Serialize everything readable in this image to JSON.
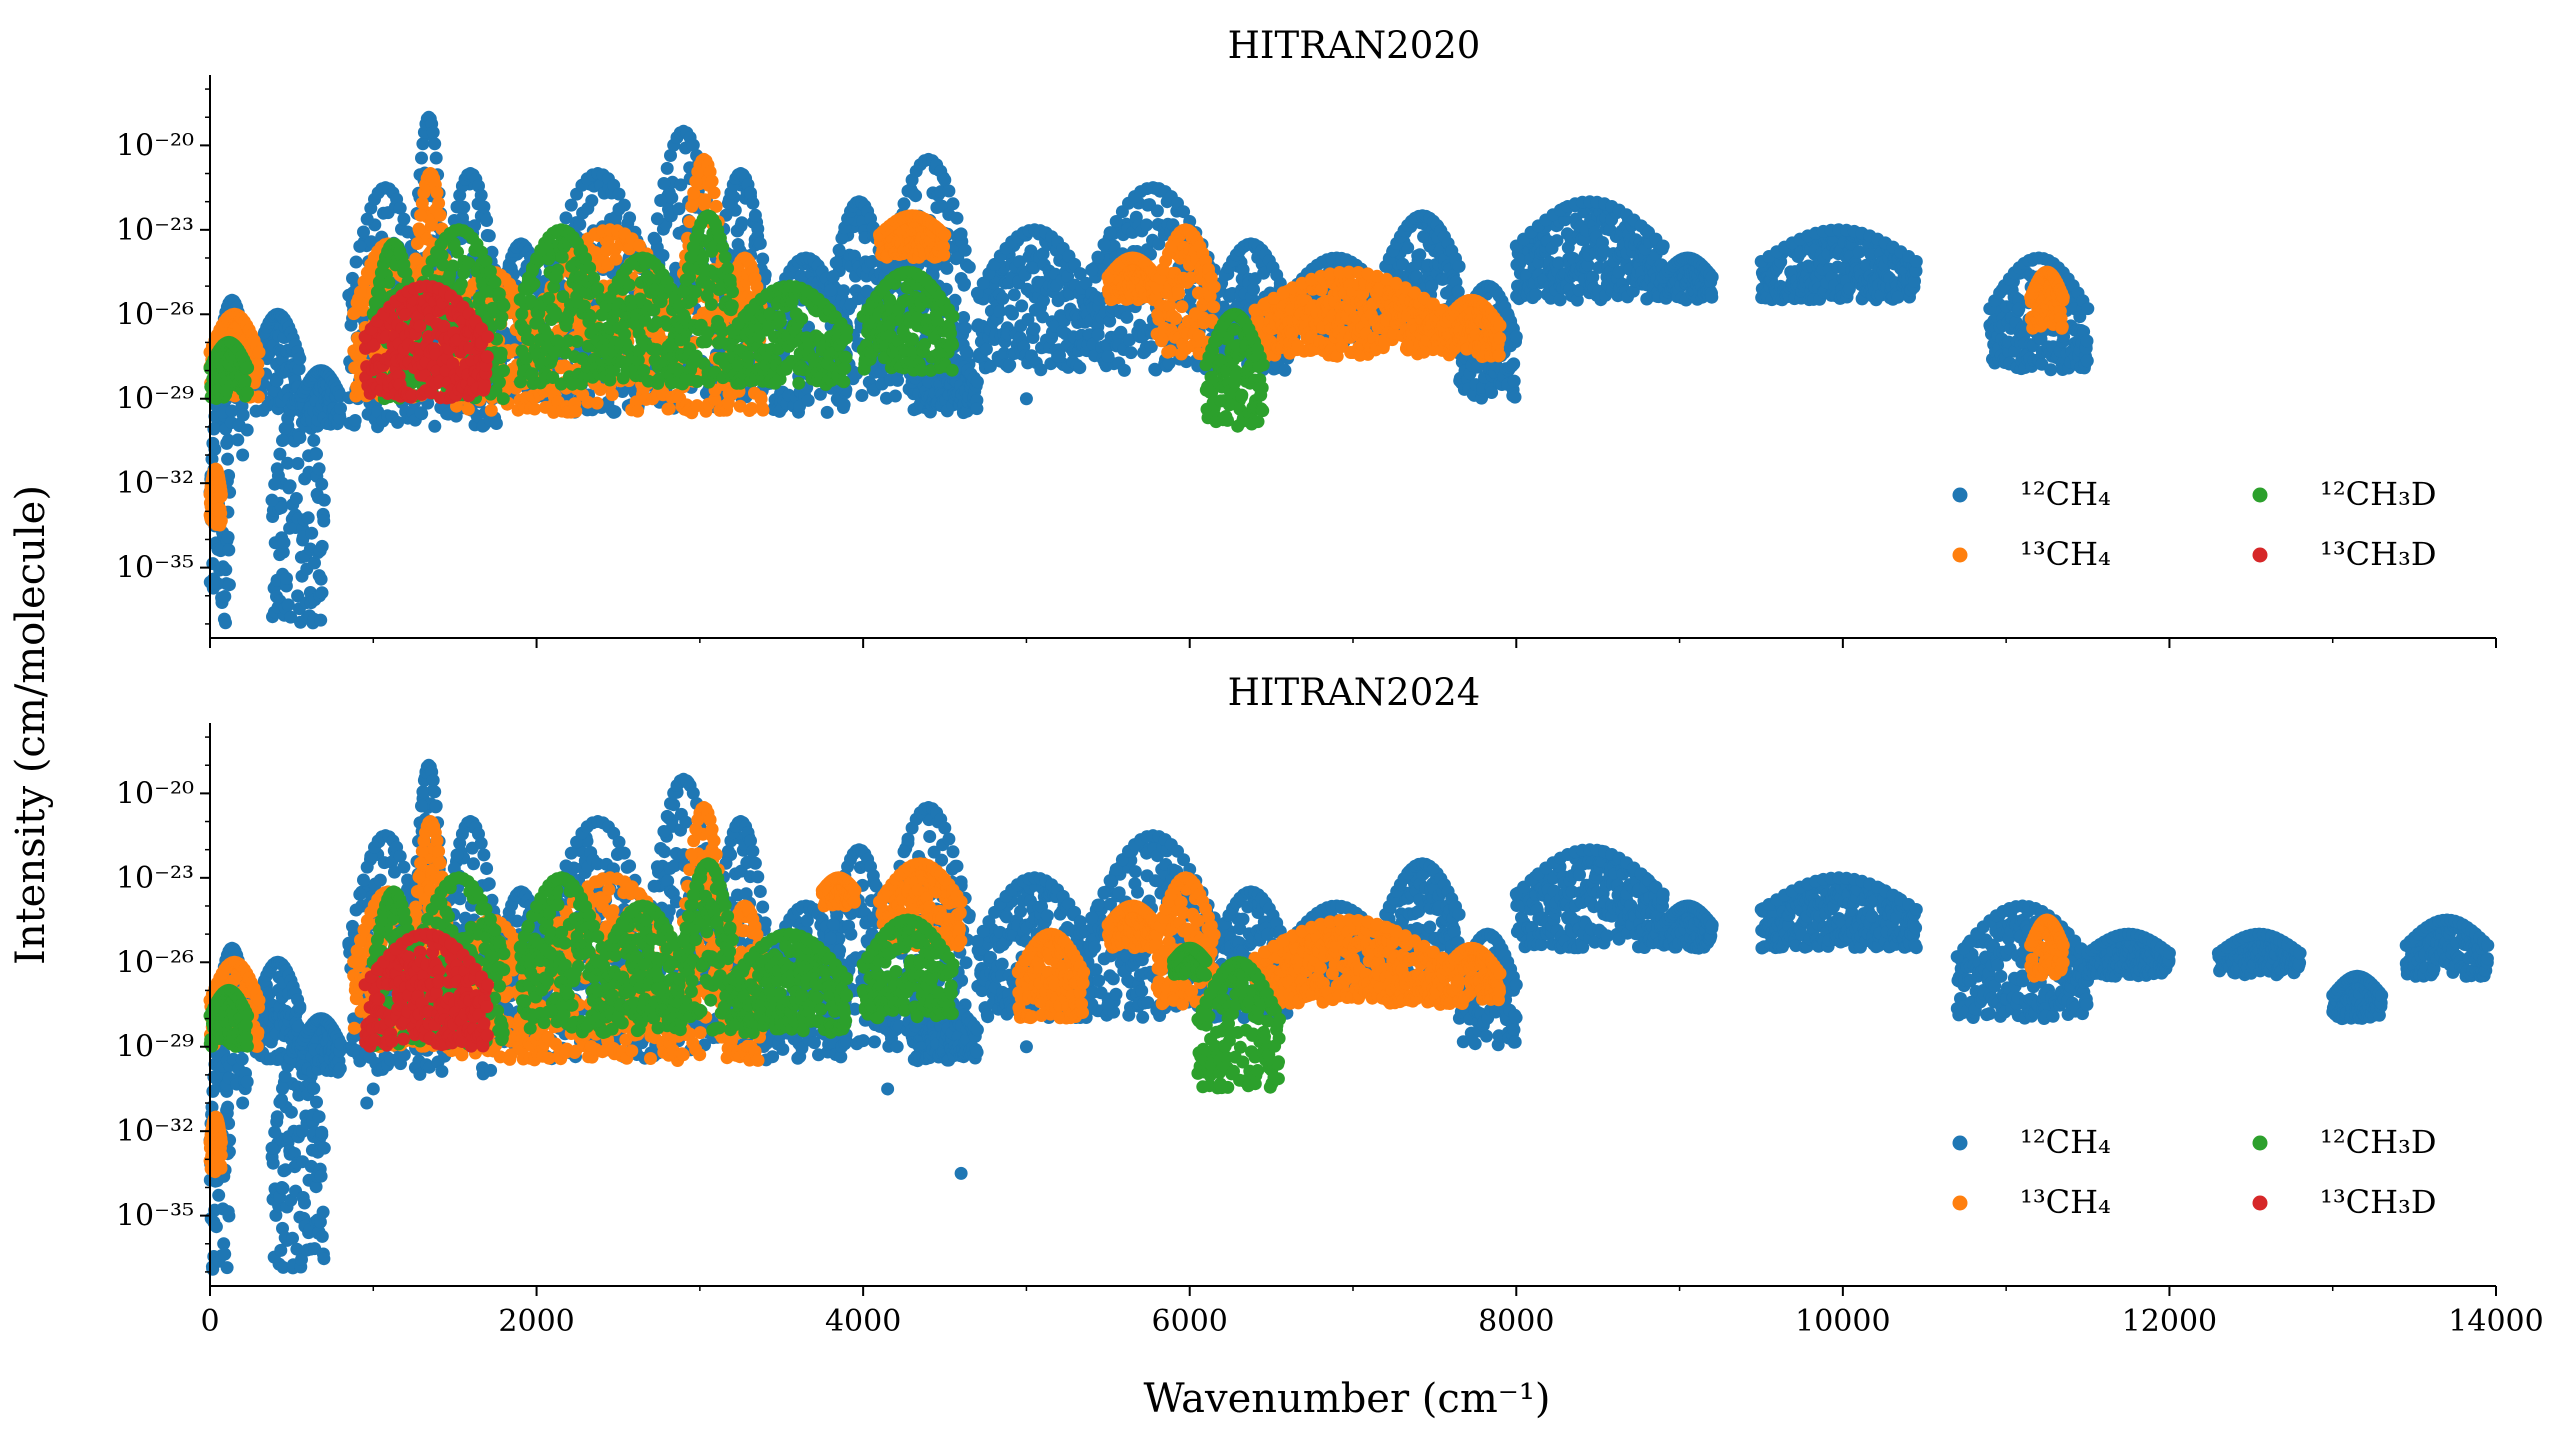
{
  "figure": {
    "ylabel": "Intensity (cm/molecule)",
    "xlabel": "Wavenumber (cm⁻¹)"
  },
  "chart_data": [
    {
      "type": "scatter",
      "title": "HITRAN2020",
      "xlabel": "",
      "ylabel": "Intensity (cm/molecule)",
      "xlim": [
        0,
        14000
      ],
      "ylim_log10": [
        -37.5,
        -17.5
      ],
      "yscale": "log",
      "x_ticks": [
        "0",
        "2000",
        "4000",
        "6000",
        "8000",
        "10000",
        "12000",
        "14000"
      ],
      "x_tick_labels_shown": false,
      "y_ticks": [
        {
          "exp": -20,
          "label": "10⁻²⁰"
        },
        {
          "exp": -23,
          "label": "10⁻²³"
        },
        {
          "exp": -26,
          "label": "10⁻²⁶"
        },
        {
          "exp": -29,
          "label": "10⁻²⁹"
        },
        {
          "exp": -32,
          "label": "10⁻³²"
        },
        {
          "exp": -35,
          "label": "10⁻³⁵"
        }
      ],
      "legend_position": "lower-right",
      "series": [
        {
          "name": "¹²CH₄",
          "color": "#1f77b4",
          "bands": [
            {
              "x0": 0,
              "x1": 120,
              "lo": -37,
              "hi": -28.5
            },
            {
              "x0": 40,
              "x1": 230,
              "lo": -30.5,
              "hi": -25.5
            },
            {
              "x0": 280,
              "x1": 550,
              "lo": -29.5,
              "hi": -26
            },
            {
              "x0": 380,
              "x1": 700,
              "lo": -37,
              "hi": -29
            },
            {
              "x0": 560,
              "x1": 800,
              "lo": -30,
              "hi": -28
            },
            {
              "x0": 850,
              "x1": 1300,
              "lo": -30,
              "hi": -21.5
            },
            {
              "x0": 1250,
              "x1": 1430,
              "lo": -30,
              "hi": -19
            },
            {
              "x0": 1430,
              "x1": 1760,
              "lo": -30,
              "hi": -21
            },
            {
              "x0": 1760,
              "x1": 2050,
              "lo": -29,
              "hi": -23.5
            },
            {
              "x0": 2050,
              "x1": 2700,
              "lo": -29.5,
              "hi": -21
            },
            {
              "x0": 2700,
              "x1": 3100,
              "lo": -29.5,
              "hi": -19.5
            },
            {
              "x0": 3100,
              "x1": 3400,
              "lo": -29,
              "hi": -21
            },
            {
              "x0": 3400,
              "x1": 3900,
              "lo": -29.5,
              "hi": -24
            },
            {
              "x0": 3800,
              "x1": 4150,
              "lo": -29,
              "hi": -22
            },
            {
              "x0": 4150,
              "x1": 4650,
              "lo": -29,
              "hi": -20.5
            },
            {
              "x0": 4300,
              "x1": 4700,
              "lo": -29.5,
              "hi": -27.5
            },
            {
              "x0": 4700,
              "x1": 5400,
              "lo": -28,
              "hi": -23
            },
            {
              "x0": 5400,
              "x1": 6150,
              "lo": -28,
              "hi": -21.5
            },
            {
              "x0": 6150,
              "x1": 6600,
              "lo": -28,
              "hi": -23.5
            },
            {
              "x0": 6600,
              "x1": 7200,
              "lo": -27,
              "hi": -24
            },
            {
              "x0": 7200,
              "x1": 7650,
              "lo": -26.5,
              "hi": -22.5
            },
            {
              "x0": 7650,
              "x1": 8000,
              "lo": -29,
              "hi": -25
            },
            {
              "x0": 8000,
              "x1": 8900,
              "lo": -25.5,
              "hi": -22
            },
            {
              "x0": 8900,
              "x1": 9200,
              "lo": -25.5,
              "hi": -24
            },
            {
              "x0": 9500,
              "x1": 10450,
              "lo": -25.5,
              "hi": -23
            },
            {
              "x0": 10900,
              "x1": 11500,
              "lo": -28,
              "hi": -24
            }
          ]
        },
        {
          "name": "¹³CH₄",
          "color": "#ff7f0e",
          "bands": [
            {
              "x0": 0,
              "x1": 70,
              "lo": -33.5,
              "hi": -31.5
            },
            {
              "x0": 0,
              "x1": 300,
              "lo": -29,
              "hi": -26
            },
            {
              "x0": 880,
              "x1": 1300,
              "lo": -29,
              "hi": -23.5
            },
            {
              "x0": 1250,
              "x1": 1450,
              "lo": -29,
              "hi": -21
            },
            {
              "x0": 1450,
              "x1": 2000,
              "lo": -29.5,
              "hi": -24.5
            },
            {
              "x0": 2000,
              "x1": 2900,
              "lo": -29.5,
              "hi": -23
            },
            {
              "x0": 2900,
              "x1": 3150,
              "lo": -29.5,
              "hi": -20.5
            },
            {
              "x0": 3150,
              "x1": 3400,
              "lo": -29.5,
              "hi": -24
            },
            {
              "x0": 4100,
              "x1": 4500,
              "lo": -24,
              "hi": -22.5
            },
            {
              "x0": 5500,
              "x1": 5800,
              "lo": -25.5,
              "hi": -24
            },
            {
              "x0": 5800,
              "x1": 6150,
              "lo": -27.5,
              "hi": -23
            },
            {
              "x0": 6400,
              "x1": 7550,
              "lo": -27.5,
              "hi": -24.5
            },
            {
              "x0": 7550,
              "x1": 7900,
              "lo": -27.5,
              "hi": -25.5
            },
            {
              "x0": 11150,
              "x1": 11350,
              "lo": -26.5,
              "hi": -24.5
            }
          ]
        },
        {
          "name": "¹²CH₃D",
          "color": "#2ca02c",
          "bands": [
            {
              "x0": 0,
              "x1": 230,
              "lo": -29,
              "hi": -27
            },
            {
              "x0": 1000,
              "x1": 1250,
              "lo": -29,
              "hi": -23.5
            },
            {
              "x0": 1250,
              "x1": 1800,
              "lo": -29,
              "hi": -23
            },
            {
              "x0": 1900,
              "x1": 2400,
              "lo": -28.5,
              "hi": -23
            },
            {
              "x0": 2400,
              "x1": 2900,
              "lo": -28.5,
              "hi": -24
            },
            {
              "x0": 2900,
              "x1": 3200,
              "lo": -28.5,
              "hi": -22.5
            },
            {
              "x0": 3200,
              "x1": 3900,
              "lo": -28.5,
              "hi": -25
            },
            {
              "x0": 4000,
              "x1": 4550,
              "lo": -28,
              "hi": -24.5
            },
            {
              "x0": 6100,
              "x1": 6450,
              "lo": -30,
              "hi": -26
            }
          ]
        },
        {
          "name": "¹³CH₃D",
          "color": "#d62728",
          "bands": [
            {
              "x0": 950,
              "x1": 1700,
              "lo": -29,
              "hi": -25
            }
          ]
        }
      ]
    },
    {
      "type": "scatter",
      "title": "HITRAN2024",
      "xlabel": "Wavenumber (cm⁻¹)",
      "ylabel": "Intensity (cm/molecule)",
      "xlim": [
        0,
        14000
      ],
      "ylim_log10": [
        -37.5,
        -17.5
      ],
      "yscale": "log",
      "x_ticks": [
        "0",
        "2000",
        "4000",
        "6000",
        "8000",
        "10000",
        "12000",
        "14000"
      ],
      "x_tick_labels_shown": true,
      "y_ticks": [
        {
          "exp": -20,
          "label": "10⁻²⁰"
        },
        {
          "exp": -23,
          "label": "10⁻²³"
        },
        {
          "exp": -26,
          "label": "10⁻²⁶"
        },
        {
          "exp": -29,
          "label": "10⁻²⁹"
        },
        {
          "exp": -32,
          "label": "10⁻³²"
        },
        {
          "exp": -35,
          "label": "10⁻³⁵"
        }
      ],
      "legend_position": "lower-right",
      "series": [
        {
          "name": "¹²CH₄",
          "color": "#1f77b4",
          "bands": [
            {
              "x0": 0,
              "x1": 120,
              "lo": -37,
              "hi": -28.5
            },
            {
              "x0": 40,
              "x1": 230,
              "lo": -30.5,
              "hi": -25.5
            },
            {
              "x0": 280,
              "x1": 550,
              "lo": -29.5,
              "hi": -26
            },
            {
              "x0": 380,
              "x1": 700,
              "lo": -37,
              "hi": -29
            },
            {
              "x0": 560,
              "x1": 800,
              "lo": -30,
              "hi": -28
            },
            {
              "x0": 850,
              "x1": 1300,
              "lo": -30,
              "hi": -21.5
            },
            {
              "x0": 1250,
              "x1": 1430,
              "lo": -30,
              "hi": -19
            },
            {
              "x0": 1430,
              "x1": 1760,
              "lo": -30,
              "hi": -21
            },
            {
              "x0": 1760,
              "x1": 2050,
              "lo": -29,
              "hi": -23.5
            },
            {
              "x0": 2050,
              "x1": 2700,
              "lo": -29.5,
              "hi": -21
            },
            {
              "x0": 2700,
              "x1": 3100,
              "lo": -29.5,
              "hi": -19.5
            },
            {
              "x0": 3100,
              "x1": 3400,
              "lo": -29,
              "hi": -21
            },
            {
              "x0": 3400,
              "x1": 3900,
              "lo": -29.5,
              "hi": -24
            },
            {
              "x0": 3800,
              "x1": 4150,
              "lo": -29,
              "hi": -22
            },
            {
              "x0": 4150,
              "x1": 4650,
              "lo": -29,
              "hi": -20.5
            },
            {
              "x0": 4300,
              "x1": 4700,
              "lo": -29.5,
              "hi": -27.5
            },
            {
              "x0": 4700,
              "x1": 5400,
              "lo": -28,
              "hi": -23
            },
            {
              "x0": 5400,
              "x1": 6150,
              "lo": -28,
              "hi": -21.5
            },
            {
              "x0": 6150,
              "x1": 6600,
              "lo": -28,
              "hi": -23.5
            },
            {
              "x0": 6600,
              "x1": 7200,
              "lo": -27,
              "hi": -24
            },
            {
              "x0": 7200,
              "x1": 7650,
              "lo": -26.5,
              "hi": -22.5
            },
            {
              "x0": 7650,
              "x1": 8000,
              "lo": -29,
              "hi": -25
            },
            {
              "x0": 8000,
              "x1": 8900,
              "lo": -25.5,
              "hi": -22
            },
            {
              "x0": 8900,
              "x1": 9200,
              "lo": -25.5,
              "hi": -24
            },
            {
              "x0": 9500,
              "x1": 10450,
              "lo": -25.5,
              "hi": -23
            },
            {
              "x0": 10700,
              "x1": 11500,
              "lo": -28,
              "hi": -24
            },
            {
              "x0": 11500,
              "x1": 12000,
              "lo": -26.5,
              "hi": -25
            },
            {
              "x0": 12300,
              "x1": 12800,
              "lo": -26.5,
              "hi": -25
            },
            {
              "x0": 13000,
              "x1": 13300,
              "lo": -28,
              "hi": -26.5
            },
            {
              "x0": 13450,
              "x1": 13950,
              "lo": -26.5,
              "hi": -24.5
            }
          ]
        },
        {
          "name": "¹³CH₄",
          "color": "#ff7f0e",
          "bands": [
            {
              "x0": 0,
              "x1": 70,
              "lo": -33.5,
              "hi": -31.5
            },
            {
              "x0": 0,
              "x1": 300,
              "lo": -29,
              "hi": -26
            },
            {
              "x0": 880,
              "x1": 1300,
              "lo": -29,
              "hi": -23.5
            },
            {
              "x0": 1250,
              "x1": 1450,
              "lo": -29,
              "hi": -21
            },
            {
              "x0": 1450,
              "x1": 2000,
              "lo": -29.5,
              "hi": -24.5
            },
            {
              "x0": 2000,
              "x1": 2900,
              "lo": -29.5,
              "hi": -23
            },
            {
              "x0": 2900,
              "x1": 3150,
              "lo": -29.5,
              "hi": -20.5
            },
            {
              "x0": 3150,
              "x1": 3400,
              "lo": -29.5,
              "hi": -24
            },
            {
              "x0": 3750,
              "x1": 3950,
              "lo": -24,
              "hi": -23
            },
            {
              "x0": 4100,
              "x1": 4600,
              "lo": -25.5,
              "hi": -22.5
            },
            {
              "x0": 4950,
              "x1": 5350,
              "lo": -28,
              "hi": -25
            },
            {
              "x0": 5500,
              "x1": 5800,
              "lo": -25.5,
              "hi": -24
            },
            {
              "x0": 5800,
              "x1": 6150,
              "lo": -27.5,
              "hi": -23
            },
            {
              "x0": 6400,
              "x1": 7550,
              "lo": -27.5,
              "hi": -24.5
            },
            {
              "x0": 7550,
              "x1": 7900,
              "lo": -27.5,
              "hi": -25.5
            },
            {
              "x0": 11150,
              "x1": 11350,
              "lo": -26.5,
              "hi": -24.5
            }
          ]
        },
        {
          "name": "¹²CH₃D",
          "color": "#2ca02c",
          "bands": [
            {
              "x0": 0,
              "x1": 230,
              "lo": -29,
              "hi": -27
            },
            {
              "x0": 1000,
              "x1": 1250,
              "lo": -29,
              "hi": -23.5
            },
            {
              "x0": 1250,
              "x1": 1800,
              "lo": -29,
              "hi": -23
            },
            {
              "x0": 1900,
              "x1": 2400,
              "lo": -28.5,
              "hi": -23
            },
            {
              "x0": 2400,
              "x1": 2900,
              "lo": -28.5,
              "hi": -24
            },
            {
              "x0": 2900,
              "x1": 3200,
              "lo": -28.5,
              "hi": -22.5
            },
            {
              "x0": 3200,
              "x1": 3900,
              "lo": -28.5,
              "hi": -25
            },
            {
              "x0": 4000,
              "x1": 4550,
              "lo": -28,
              "hi": -24.5
            },
            {
              "x0": 5900,
              "x1": 6100,
              "lo": -26.5,
              "hi": -25.5
            },
            {
              "x0": 6050,
              "x1": 6550,
              "lo": -30.5,
              "hi": -26
            }
          ]
        },
        {
          "name": "¹³CH₃D",
          "color": "#d62728",
          "bands": [
            {
              "x0": 950,
              "x1": 1700,
              "lo": -29,
              "hi": -25
            }
          ]
        }
      ]
    }
  ],
  "points": [
    {
      "panel": 0,
      "series": 0,
      "x": 200,
      "log10y": -31
    },
    {
      "panel": 0,
      "series": 0,
      "x": 5000,
      "log10y": -29
    },
    {
      "panel": 0,
      "series": 0,
      "x": 5500,
      "log10y": -27.5
    },
    {
      "panel": 0,
      "series": 0,
      "x": 5200,
      "log10y": -27.5
    },
    {
      "panel": 1,
      "series": 0,
      "x": 200,
      "log10y": -31
    },
    {
      "panel": 1,
      "series": 0,
      "x": 1000,
      "log10y": -30.5
    },
    {
      "panel": 1,
      "series": 0,
      "x": 960,
      "log10y": -31
    },
    {
      "panel": 1,
      "series": 0,
      "x": 4150,
      "log10y": -30.5
    },
    {
      "panel": 1,
      "series": 0,
      "x": 4600,
      "log10y": -33.5
    },
    {
      "panel": 1,
      "series": 0,
      "x": 5000,
      "log10y": -29
    },
    {
      "panel": 1,
      "series": 0,
      "x": 5500,
      "log10y": -27.5
    }
  ]
}
